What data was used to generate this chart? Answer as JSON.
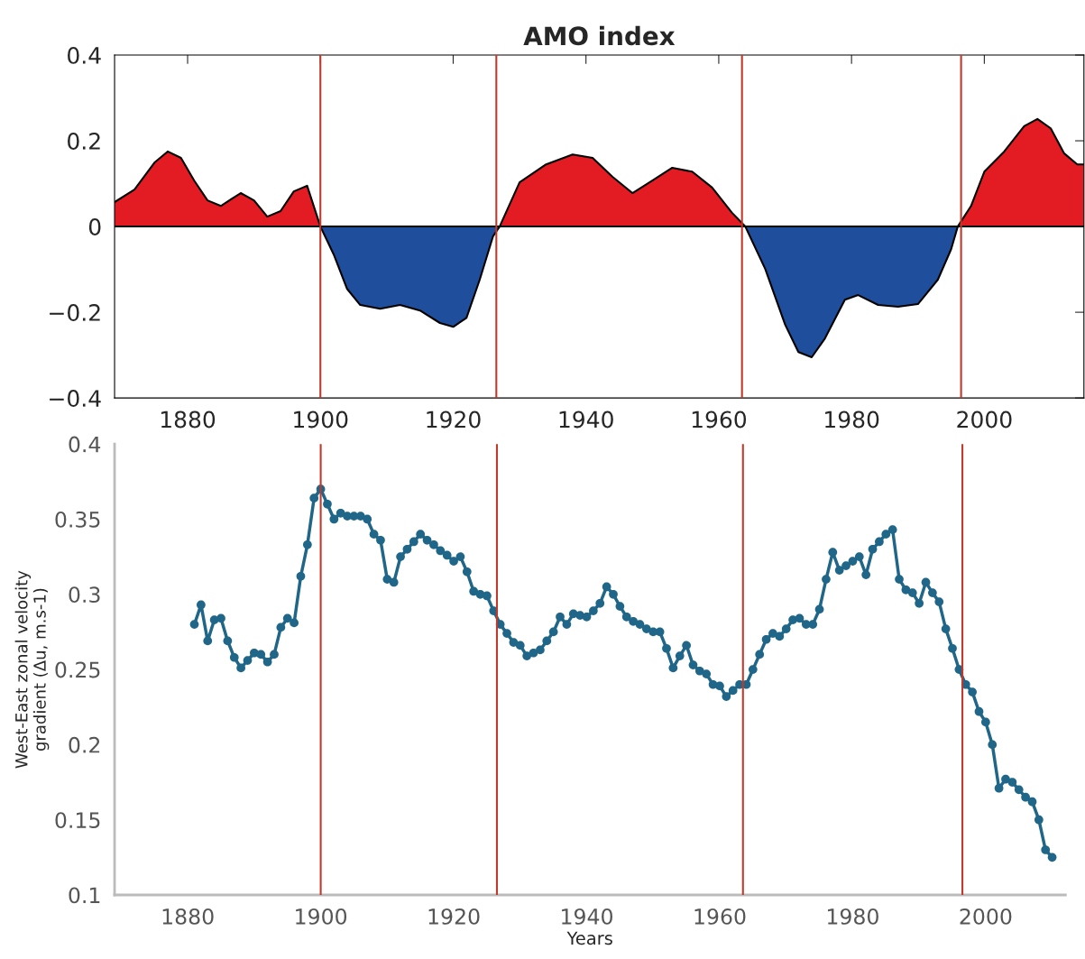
{
  "chart_data": [
    {
      "type": "area",
      "title": "AMO index",
      "x": [
        1869,
        1872,
        1875,
        1877,
        1879,
        1881,
        1883,
        1885,
        1888,
        1890,
        1892,
        1894,
        1896,
        1898,
        1900,
        1902,
        1904,
        1906,
        1909,
        1912,
        1915,
        1918,
        1920,
        1922,
        1924,
        1926,
        1927,
        1930,
        1934,
        1938,
        1941,
        1944,
        1947,
        1950,
        1953,
        1956,
        1959,
        1962,
        1964,
        1967,
        1970,
        1972,
        1974,
        1976,
        1979,
        1981,
        1984,
        1987,
        1990,
        1993,
        1995,
        1996,
        1998,
        2000,
        2003,
        2006,
        2008,
        2010,
        2012,
        2014,
        2015
      ],
      "series": [
        {
          "color": "#e31b23",
          "values": [
            0.057,
            0.086,
            0.149,
            0.175,
            0.16,
            0.107,
            0.061,
            0.048,
            0.078,
            0.061,
            0.023,
            0.036,
            0.082,
            0.095,
            0,
            null,
            null,
            null,
            null,
            null,
            null,
            null,
            null,
            null,
            null,
            null,
            0,
            0.103,
            0.145,
            0.168,
            0.16,
            0.116,
            0.078,
            0.107,
            0.137,
            0.128,
            0.091,
            0.032,
            0,
            null,
            null,
            null,
            null,
            null,
            null,
            null,
            null,
            null,
            null,
            null,
            null,
            0,
            0.048,
            0.128,
            0.175,
            0.234,
            0.251,
            0.229,
            0.171,
            0.145,
            0.145
          ]
        },
        {
          "color": "#1f4e9c",
          "values": [
            null,
            null,
            null,
            null,
            null,
            null,
            null,
            null,
            null,
            null,
            null,
            null,
            null,
            null,
            0,
            -0.065,
            -0.145,
            -0.183,
            -0.192,
            -0.183,
            -0.196,
            -0.225,
            -0.234,
            -0.213,
            -0.124,
            -0.023,
            0,
            null,
            null,
            null,
            null,
            null,
            null,
            null,
            null,
            null,
            null,
            null,
            0,
            -0.099,
            -0.229,
            -0.293,
            -0.305,
            -0.261,
            -0.171,
            -0.16,
            -0.183,
            -0.187,
            -0.181,
            -0.124,
            -0.053,
            0,
            null,
            null,
            null,
            null,
            null,
            null,
            null,
            null,
            null
          ]
        }
      ],
      "xlim": [
        1869,
        2015
      ],
      "xticks": [
        1880,
        1900,
        1920,
        1940,
        1960,
        1980,
        2000
      ],
      "ylim": [
        -0.4,
        0.4
      ],
      "yticks": [
        {
          "value": -0.4,
          "label": "−0.4"
        },
        {
          "value": -0.2,
          "label": "−0.2"
        },
        0,
        0.2,
        0.4
      ],
      "ref_lines": [
        {
          "axis": "y",
          "value": 0,
          "color": "#000000"
        },
        {
          "axis": "x",
          "value": 1900,
          "color": "#c0392b"
        },
        {
          "axis": "x",
          "value": 1926.5,
          "color": "#c0392b"
        },
        {
          "axis": "x",
          "value": 1963.5,
          "color": "#c0392b"
        },
        {
          "axis": "x",
          "value": 1996.5,
          "color": "#c0392b"
        }
      ],
      "grid": false,
      "legend": false
    },
    {
      "type": "line",
      "xlabel": "Years",
      "ylabel": "West-East zonal velocity\ngradient (Δu, m.s-1)",
      "x": [
        1881,
        1882,
        1883,
        1884,
        1885,
        1886,
        1887,
        1888,
        1889,
        1890,
        1891,
        1892,
        1893,
        1894,
        1895,
        1896,
        1897,
        1898,
        1899,
        1900,
        1901,
        1902,
        1903,
        1904,
        1905,
        1906,
        1907,
        1908,
        1909,
        1910,
        1911,
        1912,
        1913,
        1914,
        1915,
        1916,
        1917,
        1918,
        1919,
        1920,
        1921,
        1922,
        1923,
        1924,
        1925,
        1926,
        1927,
        1928,
        1929,
        1930,
        1931,
        1932,
        1933,
        1934,
        1935,
        1936,
        1937,
        1938,
        1939,
        1940,
        1941,
        1942,
        1943,
        1944,
        1945,
        1946,
        1947,
        1948,
        1949,
        1950,
        1951,
        1952,
        1953,
        1954,
        1955,
        1956,
        1957,
        1958,
        1959,
        1960,
        1961,
        1962,
        1963,
        1964,
        1965,
        1966,
        1967,
        1968,
        1969,
        1970,
        1971,
        1972,
        1973,
        1974,
        1975,
        1976,
        1977,
        1978,
        1979,
        1980,
        1981,
        1982,
        1983,
        1984,
        1985,
        1986,
        1987,
        1988,
        1989,
        1990,
        1991,
        1992,
        1993,
        1994,
        1995,
        1996,
        1997,
        1998,
        1999,
        2000,
        2001,
        2002,
        2003,
        2004,
        2005,
        2006,
        2007,
        2008,
        2009,
        2010
      ],
      "series": [
        {
          "color": "#1f6688",
          "values": [
            0.28,
            0.293,
            0.269,
            0.283,
            0.284,
            0.269,
            0.258,
            0.251,
            0.256,
            0.261,
            0.26,
            0.255,
            0.26,
            0.278,
            0.284,
            0.281,
            0.312,
            0.333,
            0.364,
            0.37,
            0.36,
            0.35,
            0.354,
            0.352,
            0.352,
            0.352,
            0.35,
            0.34,
            0.336,
            0.31,
            0.308,
            0.325,
            0.33,
            0.335,
            0.34,
            0.336,
            0.333,
            0.329,
            0.326,
            0.322,
            0.325,
            0.315,
            0.302,
            0.3,
            0.299,
            0.289,
            0.28,
            0.274,
            0.268,
            0.266,
            0.259,
            0.261,
            0.263,
            0.269,
            0.275,
            0.285,
            0.28,
            0.287,
            0.286,
            0.285,
            0.289,
            0.294,
            0.305,
            0.3,
            0.292,
            0.285,
            0.282,
            0.28,
            0.277,
            0.275,
            0.275,
            0.264,
            0.251,
            0.259,
            0.266,
            0.253,
            0.249,
            0.247,
            0.24,
            0.239,
            0.232,
            0.236,
            0.24,
            0.24,
            0.25,
            0.26,
            0.27,
            0.274,
            0.272,
            0.277,
            0.283,
            0.284,
            0.28,
            0.28,
            0.29,
            0.31,
            0.328,
            0.316,
            0.319,
            0.322,
            0.325,
            0.313,
            0.33,
            0.335,
            0.34,
            0.343,
            0.31,
            0.303,
            0.301,
            0.294,
            0.308,
            0.301,
            0.295,
            0.277,
            0.264,
            0.25,
            0.24,
            0.235,
            0.222,
            0.215,
            0.2,
            0.171,
            0.177,
            0.175,
            0.17,
            0.165,
            0.162,
            0.15,
            0.13,
            0.125
          ]
        }
      ],
      "xlim": [
        1869,
        2012
      ],
      "xticks": [
        1880,
        1900,
        1920,
        1940,
        1960,
        1980,
        2000
      ],
      "ylim": [
        0.1,
        0.4
      ],
      "yticks": [
        0.1,
        0.15,
        0.2,
        0.25,
        0.3,
        0.35,
        0.4
      ],
      "ref_lines": [
        {
          "axis": "x",
          "value": 1900,
          "color": "#c0392b"
        },
        {
          "axis": "x",
          "value": 1926.5,
          "color": "#c0392b"
        },
        {
          "axis": "x",
          "value": 1963.5,
          "color": "#c0392b"
        },
        {
          "axis": "x",
          "value": 1996.5,
          "color": "#c0392b"
        }
      ],
      "marker": "circle",
      "line_style": "solid",
      "grid": false,
      "legend": false
    }
  ]
}
